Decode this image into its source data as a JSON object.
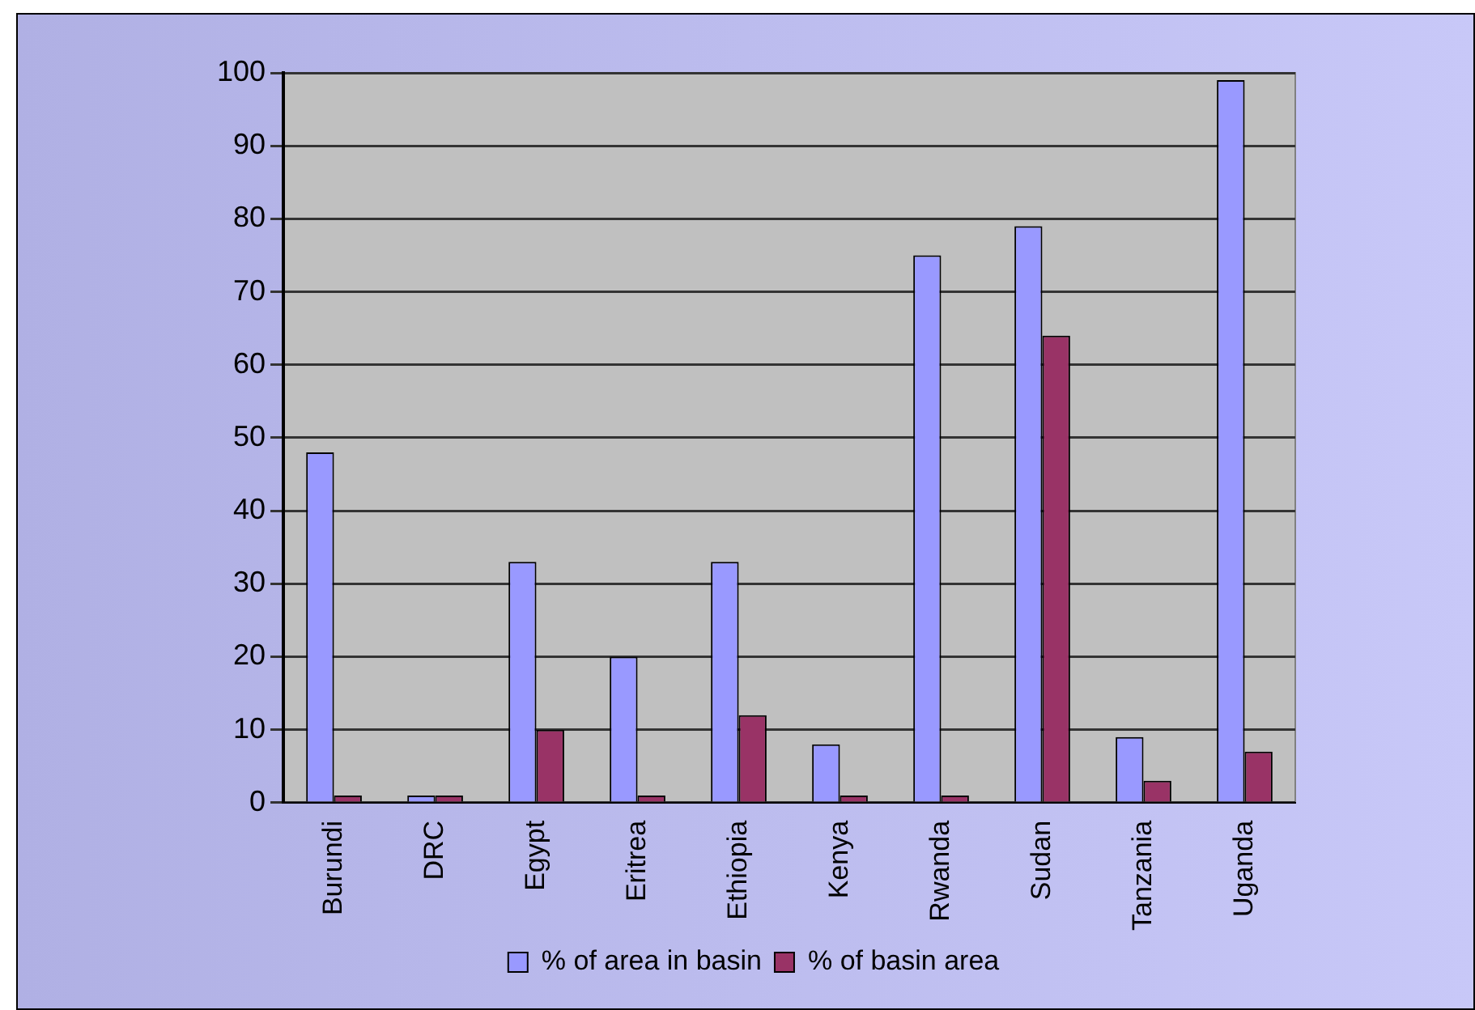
{
  "chart_data": {
    "type": "bar",
    "categories": [
      "Burundi",
      "DRC",
      "Egypt",
      "Eritrea",
      "Ethiopia",
      "Kenya",
      "Rwanda",
      "Sudan",
      "Tanzania",
      "Uganda"
    ],
    "series": [
      {
        "name": "% of area in basin",
        "color": "#9999ff",
        "values": [
          48,
          1,
          33,
          20,
          33,
          8,
          75,
          79,
          9,
          99
        ]
      },
      {
        "name": "% of basin area",
        "color": "#993366",
        "values": [
          1,
          1,
          10,
          1,
          12,
          1,
          1,
          64,
          3,
          7
        ]
      }
    ],
    "ylim": [
      0,
      100
    ],
    "yticks": [
      0,
      10,
      20,
      30,
      40,
      50,
      60,
      70,
      80,
      90,
      100
    ],
    "grid": "y",
    "legend": "bottom"
  }
}
